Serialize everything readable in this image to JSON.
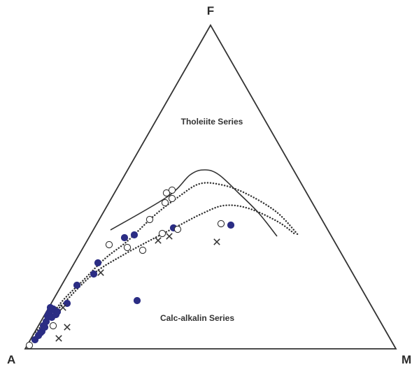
{
  "chart_data": {
    "type": "scatter",
    "vertices": {
      "apex": "F",
      "bottom_left": "A",
      "bottom_right": "M"
    },
    "field_labels": [
      {
        "key": "tholeiite",
        "text": "Tholeiite Series"
      },
      {
        "key": "calcalkalin",
        "text": "Calc-alkalin Series"
      }
    ],
    "colors": {
      "filled": "#2b2d84",
      "open_stroke": "#333333",
      "boundary": "#333333",
      "triangle": "#333333"
    },
    "boundaries": [
      {
        "style": "solid",
        "points": [
          [
            158,
            329
          ],
          [
            240,
            281
          ],
          [
            272,
            250
          ],
          [
            293,
            243
          ],
          [
            313,
            250
          ],
          [
            342,
            277
          ],
          [
            370,
            305
          ],
          [
            396,
            338
          ]
        ]
      },
      {
        "style": "dotted",
        "points": [
          [
            60,
            470
          ],
          [
            88,
            432
          ],
          [
            118,
            402
          ],
          [
            150,
            370
          ],
          [
            182,
            345
          ],
          [
            221,
            308
          ],
          [
            256,
            281
          ],
          [
            285,
            263
          ],
          [
            315,
            264
          ],
          [
            350,
            276
          ],
          [
            395,
            303
          ],
          [
            427,
            337
          ]
        ]
      },
      {
        "style": "dotted",
        "points": [
          [
            48,
            478
          ],
          [
            85,
            440
          ],
          [
            132,
            393
          ],
          [
            174,
            366
          ],
          [
            220,
            341
          ],
          [
            255,
            323
          ],
          [
            288,
            306
          ],
          [
            320,
            294
          ],
          [
            355,
            298
          ],
          [
            397,
            317
          ],
          [
            423,
            336
          ]
        ]
      }
    ],
    "series": [
      {
        "symbol": "filled-circle",
        "points": [
          [
            50,
            486
          ],
          [
            55,
            480
          ],
          [
            60,
            474
          ],
          [
            62,
            466
          ],
          [
            66,
            460
          ],
          [
            68,
            452
          ],
          [
            70,
            448
          ],
          [
            72,
            444
          ],
          [
            74,
            454
          ],
          [
            76,
            442
          ],
          [
            80,
            450
          ],
          [
            82,
            446
          ],
          [
            96,
            434
          ],
          [
            110,
            408
          ],
          [
            134,
            392
          ],
          [
            140,
            376
          ],
          [
            178,
            340
          ],
          [
            192,
            336
          ],
          [
            248,
            326
          ],
          [
            330,
            322
          ],
          [
            196,
            430
          ],
          [
            64,
            468
          ],
          [
            58,
            476
          ],
          [
            72,
            440
          ]
        ]
      },
      {
        "symbol": "open-circle",
        "points": [
          [
            42,
            494
          ],
          [
            76,
            466
          ],
          [
            156,
            350
          ],
          [
            182,
            354
          ],
          [
            204,
            358
          ],
          [
            214,
            314
          ],
          [
            236,
            290
          ],
          [
            238,
            276
          ],
          [
            246,
            272
          ],
          [
            246,
            284
          ],
          [
            254,
            328
          ],
          [
            232,
            334
          ],
          [
            316,
            320
          ]
        ]
      },
      {
        "symbol": "cross",
        "points": [
          [
            84,
            484
          ],
          [
            96,
            468
          ],
          [
            90,
            440
          ],
          [
            144,
            390
          ],
          [
            226,
            344
          ],
          [
            242,
            338
          ],
          [
            310,
            346
          ]
        ]
      }
    ]
  }
}
